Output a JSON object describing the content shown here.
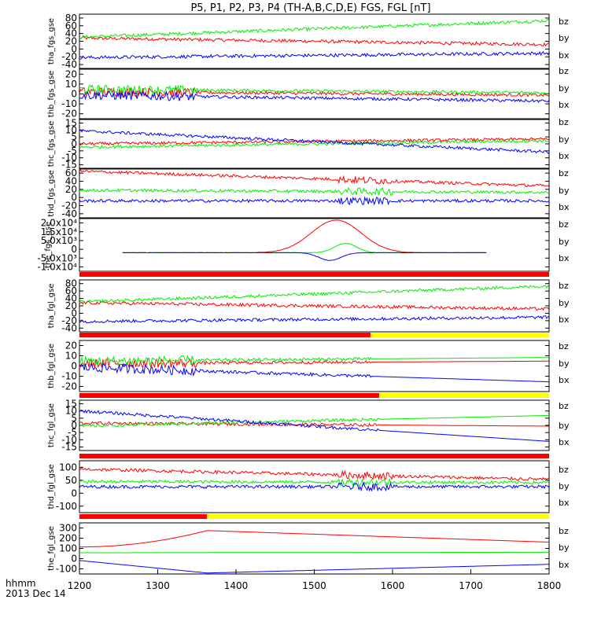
{
  "title": "P5, P1, P2, P3, P4 (TH-A,B,C,D,E) FGS, FGL [nT]",
  "xaxis": {
    "ticks": [
      "1200",
      "1300",
      "1400",
      "1500",
      "1600",
      "1700",
      "1800"
    ],
    "label_hhmm": "hhmm",
    "label_date": "2013 Dec 14"
  },
  "legend": {
    "bz": "bz",
    "by": "by",
    "bx": "bx"
  },
  "colors": {
    "bz": "#ff0000",
    "by": "#00ee00",
    "bx": "#0000ff",
    "bar_red": "#ff0000",
    "bar_yellow": "#ffff00"
  },
  "chart_data": {
    "type": "line",
    "x_range": [
      1200,
      1800
    ],
    "panels": [
      {
        "ylabel": "tha_fgs_gse",
        "yticks": [
          "-40",
          "-20",
          "0",
          "20",
          "40",
          "60",
          "80"
        ],
        "ylim": [
          -40,
          85
        ],
        "series": {
          "bz": {
            "start": 30,
            "end": 15
          },
          "by": {
            "start": 32,
            "end": 70
          },
          "bx": {
            "start": -15,
            "end": -5
          }
        }
      },
      {
        "ylabel": "thb_fgs_gse",
        "yticks": [
          "-20",
          "-10",
          "0",
          "10",
          "20"
        ],
        "ylim": [
          -20,
          22
        ],
        "series": {
          "bz": {
            "start": 3,
            "end": 0
          },
          "by": {
            "start": 5,
            "end": 2
          },
          "bx": {
            "start": 0,
            "end": -5
          }
        }
      },
      {
        "ylabel": "thc_fgs_gse",
        "yticks": [
          "-15",
          "-10",
          "-5",
          "0",
          "5",
          "10",
          "15"
        ],
        "ylim": [
          -15,
          15
        ],
        "series": {
          "bz": {
            "start": 0,
            "end": 3
          },
          "by": {
            "start": -2,
            "end": 2
          },
          "bx": {
            "start": 8,
            "end": -5
          }
        }
      },
      {
        "ylabel": "thd_fgs_gse",
        "yticks": [
          "-40",
          "-20",
          "0",
          "20",
          "40",
          "60"
        ],
        "ylim": [
          -45,
          70
        ],
        "series": {
          "bz": {
            "start": 65,
            "end": 30
          },
          "by": {
            "start": 20,
            "end": 15
          },
          "bx": {
            "start": -5,
            "end": -5
          }
        }
      },
      {
        "ylabel": "the_fgs_gse",
        "yticks": [
          "-1.0x10⁴",
          "-5.0x10³",
          "0",
          "5.0x10³",
          "1.5x10⁴",
          "2.0x10⁴"
        ],
        "ylim": [
          -12000,
          22000
        ],
        "series": {
          "bz": {
            "peak": 21000,
            "peak_x": 1528
          },
          "by": {
            "peak": 6000,
            "peak_x": 1540
          },
          "bx": {
            "peak": -5000,
            "peak_x": 1520
          }
        }
      },
      {
        "ylabel": "tha_fgl_gse",
        "yticks": [
          "-40",
          "-20",
          "0",
          "20",
          "40",
          "60",
          "80"
        ],
        "ylim": [
          -40,
          85
        ],
        "series": {
          "bz": {
            "start": 30,
            "end": 15
          },
          "by": {
            "start": 32,
            "end": 70
          },
          "bx": {
            "start": -15,
            "end": -5
          }
        }
      },
      {
        "ylabel": "thb_fgl_gse",
        "yticks": [
          "-20",
          "-10",
          "0",
          "10",
          "20"
        ],
        "ylim": [
          -20,
          22
        ],
        "series": {
          "bz": {
            "start": 3,
            "end": 5
          },
          "by": {
            "start": 5,
            "end": 8
          },
          "bx": {
            "start": 0,
            "end": -12
          }
        },
        "data_end": 1572
      },
      {
        "ylabel": "thc_fgl_gse",
        "yticks": [
          "-15",
          "-10",
          "-5",
          "0",
          "5",
          "10",
          "15"
        ],
        "ylim": [
          -18,
          15
        ],
        "series": {
          "bz": {
            "start": 0,
            "end": -2
          },
          "by": {
            "start": -2,
            "end": 5
          },
          "bx": {
            "start": 8,
            "end": -12
          }
        },
        "data_end": 1583
      },
      {
        "ylabel": "thd_fgl_gse",
        "yticks": [
          "-100",
          "0",
          "50",
          "100"
        ],
        "ylim": [
          -130,
          120
        ],
        "series": {
          "bz": {
            "start": 80,
            "end": 30
          },
          "by": {
            "start": 20,
            "end": 15
          },
          "bx": {
            "start": -5,
            "end": -5
          }
        }
      },
      {
        "ylabel": "the_fgl_gse",
        "yticks": [
          "-100",
          "0",
          "100",
          "200",
          "300"
        ],
        "ylim": [
          -200,
          330
        ],
        "series": {
          "bz": {
            "start": 80,
            "peak": 250,
            "peak_x": 1363,
            "end": 130
          },
          "by": {
            "start": 20,
            "end": 25
          },
          "bx": {
            "start": -60,
            "min": -190,
            "end": -100
          }
        }
      }
    ],
    "status_bars": [
      {
        "segments": [
          {
            "from": 1200,
            "to": 1800,
            "color": "red"
          }
        ]
      },
      {
        "segments": [
          {
            "from": 1200,
            "to": 1572,
            "color": "red"
          },
          {
            "from": 1572,
            "to": 1800,
            "color": "yellow"
          }
        ]
      },
      {
        "segments": [
          {
            "from": 1200,
            "to": 1583,
            "color": "red"
          },
          {
            "from": 1583,
            "to": 1800,
            "color": "yellow"
          }
        ]
      },
      {
        "segments": [
          {
            "from": 1200,
            "to": 1800,
            "color": "red"
          }
        ]
      },
      {
        "segments": [
          {
            "from": 1200,
            "to": 1363,
            "color": "red"
          },
          {
            "from": 1363,
            "to": 1800,
            "color": "yellow"
          }
        ]
      }
    ]
  }
}
